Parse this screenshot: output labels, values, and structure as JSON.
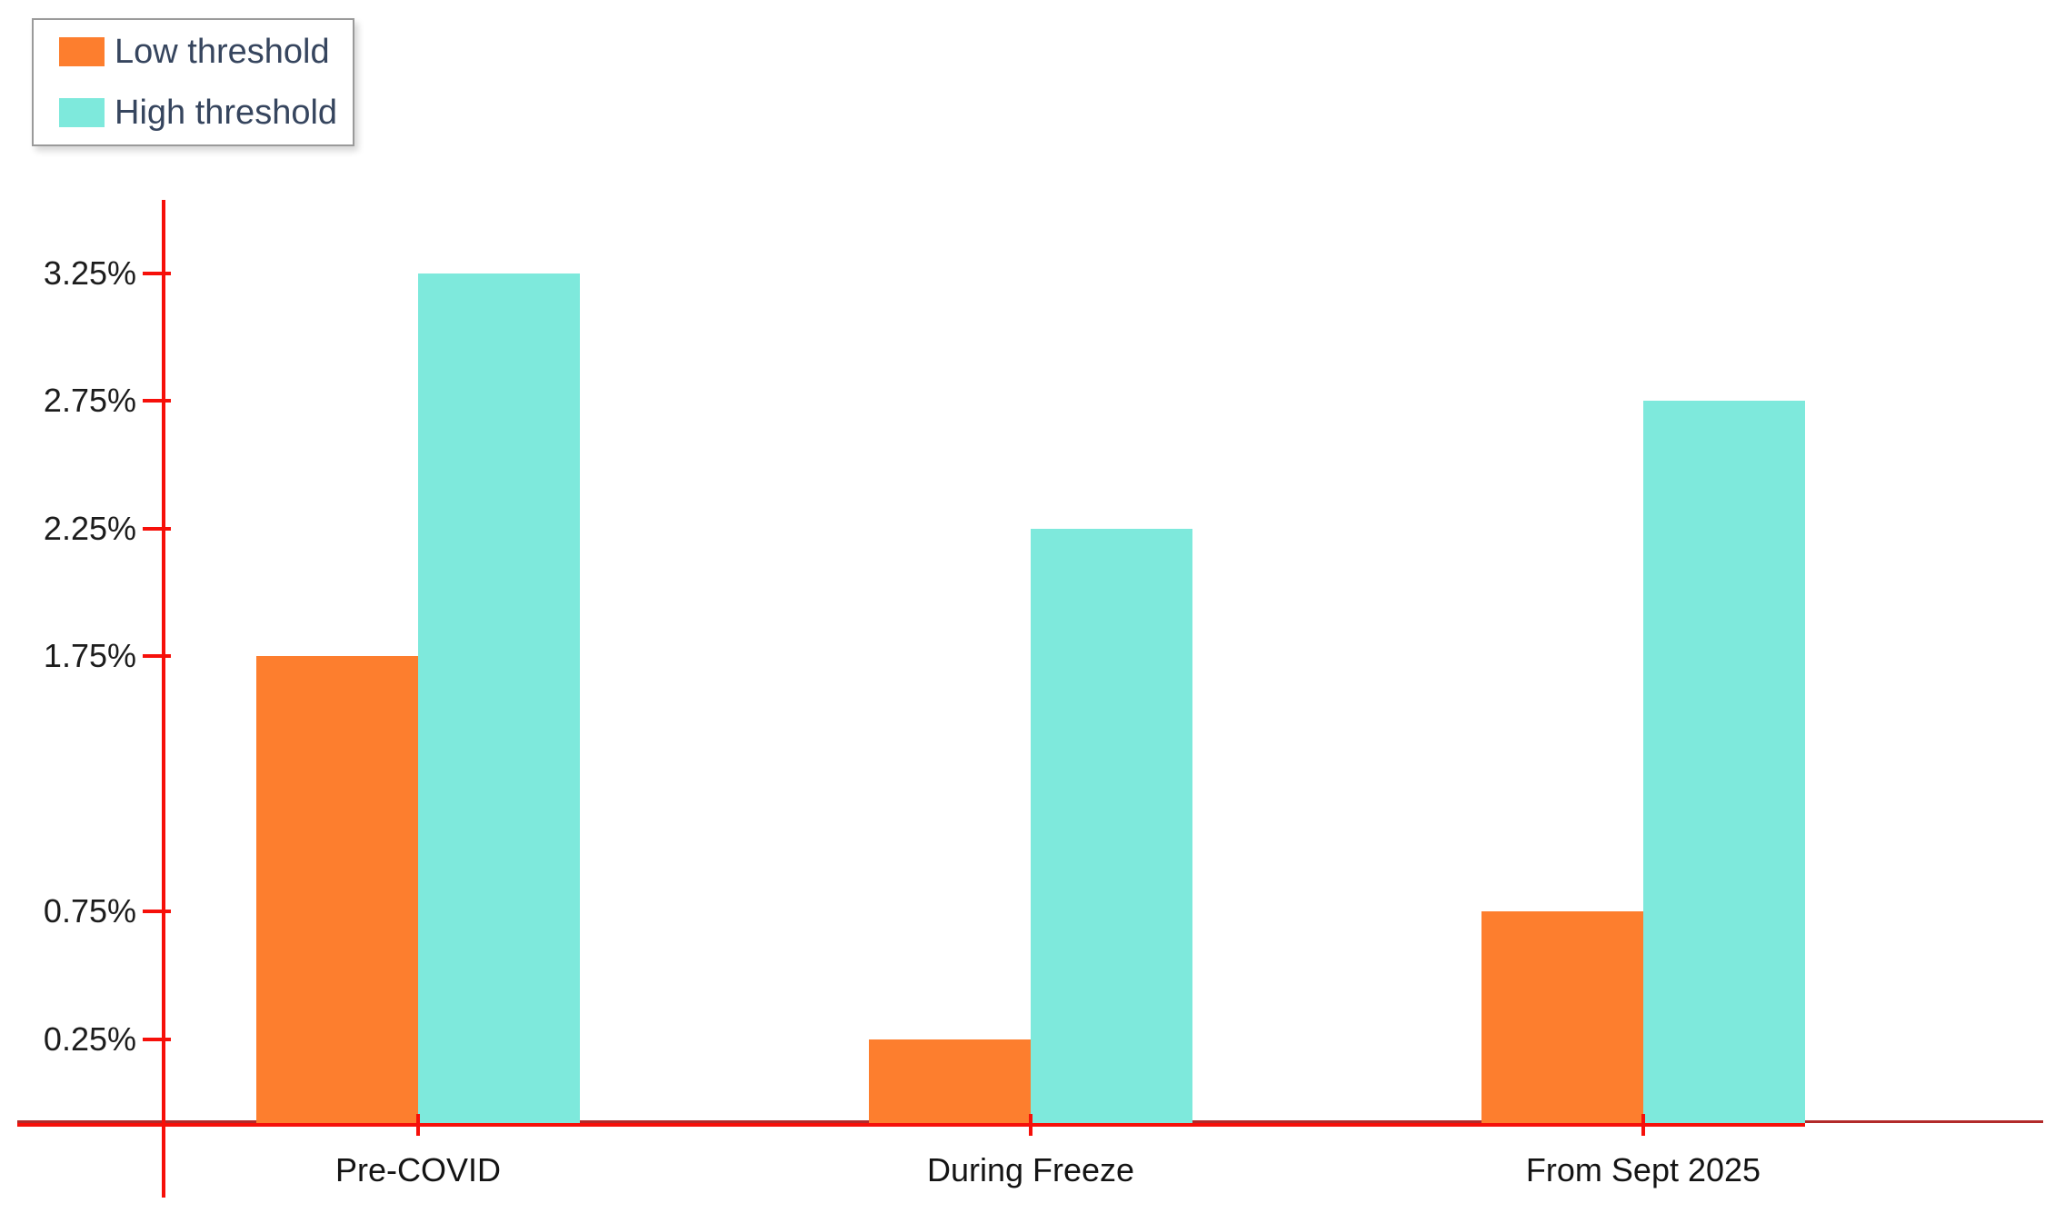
{
  "chart_data": {
    "type": "bar",
    "title": "",
    "xlabel": "",
    "ylabel": "",
    "unit": "%",
    "grid": false,
    "legend_position": "top-left",
    "categories": [
      "Pre-COVID",
      "During Freeze",
      "From Sept 2025"
    ],
    "series": [
      {
        "name": "Low threshold",
        "color": "#fd7e2e",
        "values": [
          1.75,
          0.25,
          0.75
        ]
      },
      {
        "name": "High threshold",
        "color": "#7ee9dc",
        "values": [
          3.25,
          2.25,
          2.75
        ]
      }
    ],
    "y_ticks": [
      {
        "label": "3.25%",
        "value": 3.25
      },
      {
        "label": "2.75%",
        "value": 2.75
      },
      {
        "label": "2.25%",
        "value": 2.25
      },
      {
        "label": "1.75%",
        "value": 1.75
      },
      {
        "label": "0.75%",
        "value": 0.75
      },
      {
        "label": "0.25%",
        "value": 0.25
      }
    ],
    "ylim": [
      0,
      3.5
    ],
    "colors": {
      "axis_bright_red": "#f6100a",
      "axis_dark_red": "#b22a2a",
      "tick_text": "#1c1c1c",
      "legend_text": "#36455e",
      "legend_border": "#9a9a9a"
    }
  }
}
